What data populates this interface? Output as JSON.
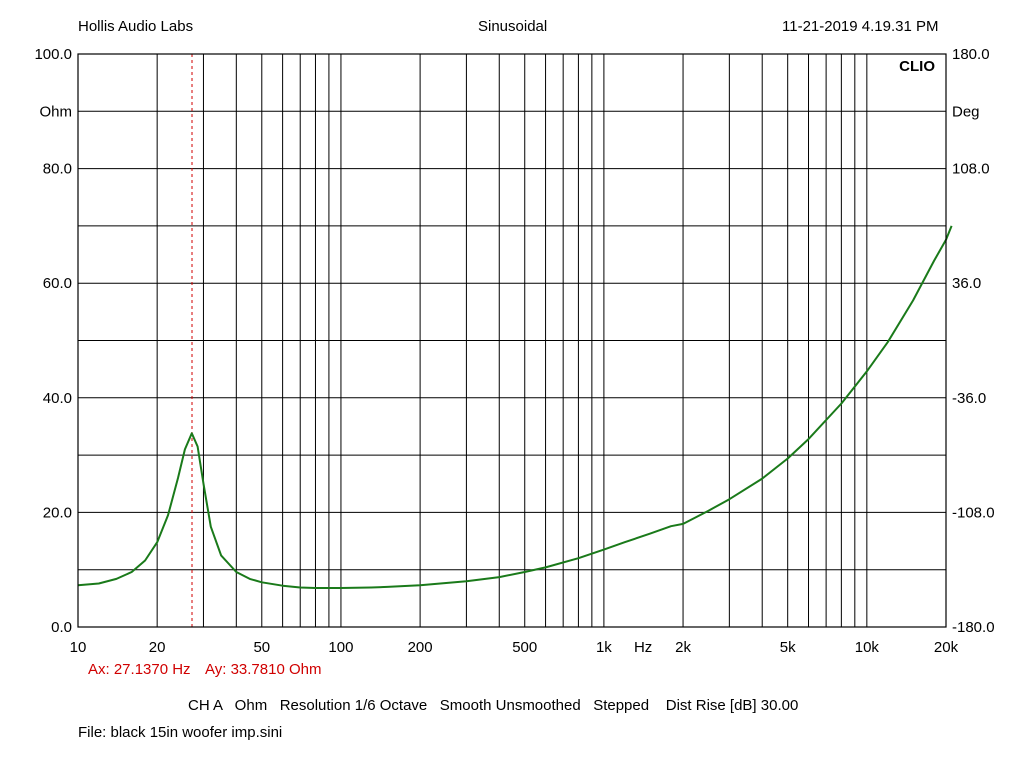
{
  "header": {
    "left": "Hollis Audio Labs",
    "center": "Sinusoidal",
    "right": "11-21-2019 4.19.31 PM"
  },
  "brand": "CLIO",
  "cursor": {
    "ax_text": "Ax: 27.1370 Hz",
    "ay_text": "Ay: 33.7810 Ohm",
    "x_hz": 27.137,
    "y_ohm": 33.781
  },
  "settings_line": "CH A   Ohm   Resolution 1/6 Octave   Smooth Unsmoothed   Stepped    Dist Rise [dB] 30.00",
  "file_line": "File: black 15in woofer imp.sini",
  "colors": {
    "curve": "#1a7a1a",
    "cursor": "#d00000",
    "grid": "#000000"
  },
  "chart_data": {
    "type": "line",
    "x_scale": "log",
    "xlim": [
      10,
      20000
    ],
    "ylim": [
      0,
      100
    ],
    "y2lim": [
      -180,
      180
    ],
    "ylabel": "Ohm",
    "y2label": "Deg",
    "xlabel": "Hz",
    "grid": true,
    "x_tick_labels": [
      {
        "v": 10,
        "t": "10"
      },
      {
        "v": 20,
        "t": "20"
      },
      {
        "v": 50,
        "t": "50"
      },
      {
        "v": 100,
        "t": "100"
      },
      {
        "v": 200,
        "t": "200"
      },
      {
        "v": 500,
        "t": "500"
      },
      {
        "v": 1000,
        "t": "1k"
      },
      {
        "v": 2000,
        "t": "2k"
      },
      {
        "v": 5000,
        "t": "5k"
      },
      {
        "v": 10000,
        "t": "10k"
      },
      {
        "v": 20000,
        "t": "20k"
      }
    ],
    "y_tick_labels": [
      {
        "v": 0,
        "t": "0.0"
      },
      {
        "v": 20,
        "t": "20.0"
      },
      {
        "v": 40,
        "t": "40.0"
      },
      {
        "v": 60,
        "t": "60.0"
      },
      {
        "v": 80,
        "t": "80.0"
      },
      {
        "v": 100,
        "t": "100.0"
      }
    ],
    "y2_tick_labels": [
      {
        "v": -180,
        "t": "-180.0"
      },
      {
        "v": -108,
        "t": "-108.0"
      },
      {
        "v": -36,
        "t": "-36.0"
      },
      {
        "v": 36,
        "t": "36.0"
      },
      {
        "v": 108,
        "t": "108.0"
      },
      {
        "v": 180,
        "t": "180.0"
      }
    ],
    "series": [
      {
        "values": [
          [
            10,
            7.3
          ],
          [
            12,
            7.6
          ],
          [
            14,
            8.4
          ],
          [
            16,
            9.6
          ],
          [
            18,
            11.6
          ],
          [
            20,
            14.8
          ],
          [
            22,
            19.5
          ],
          [
            24,
            26.0
          ],
          [
            25.5,
            31.0
          ],
          [
            27.1,
            33.8
          ],
          [
            28.5,
            31.5
          ],
          [
            30,
            25.0
          ],
          [
            32,
            17.5
          ],
          [
            35,
            12.5
          ],
          [
            40,
            9.6
          ],
          [
            45,
            8.4
          ],
          [
            50,
            7.8
          ],
          [
            60,
            7.2
          ],
          [
            70,
            6.9
          ],
          [
            80,
            6.8
          ],
          [
            100,
            6.8
          ],
          [
            130,
            6.9
          ],
          [
            150,
            7.0
          ],
          [
            200,
            7.3
          ],
          [
            300,
            8.0
          ],
          [
            400,
            8.7
          ],
          [
            500,
            9.6
          ],
          [
            600,
            10.4
          ],
          [
            800,
            12.0
          ],
          [
            1000,
            13.5
          ],
          [
            1200,
            14.8
          ],
          [
            1500,
            16.3
          ],
          [
            1800,
            17.6
          ],
          [
            2000,
            18.0
          ],
          [
            2500,
            20.3
          ],
          [
            3000,
            22.3
          ],
          [
            4000,
            25.9
          ],
          [
            5000,
            29.4
          ],
          [
            6000,
            32.8
          ],
          [
            8000,
            39.0
          ],
          [
            10000,
            44.6
          ],
          [
            12000,
            49.7
          ],
          [
            15000,
            57.0
          ],
          [
            18000,
            63.9
          ],
          [
            20000,
            67.6
          ],
          [
            21000,
            70.0
          ]
        ]
      }
    ]
  }
}
